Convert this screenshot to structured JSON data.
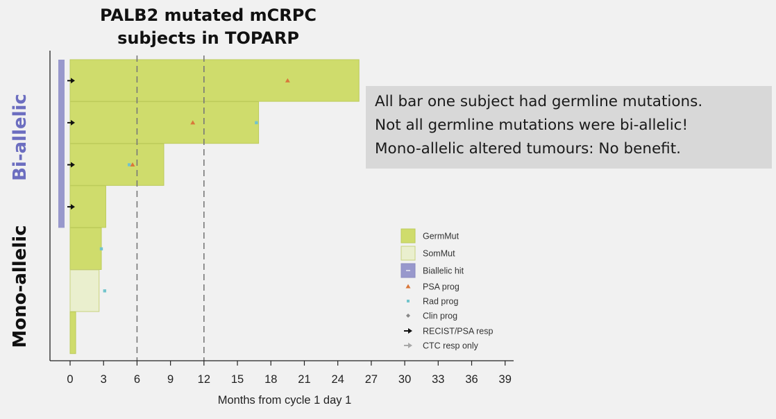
{
  "slide": {
    "title_line1": "PALB2 mutated mCRPC",
    "title_line2": "subjects in TOPARP",
    "group_labels": {
      "bi": "Bi-allelic",
      "mono": "Mono-allelic"
    },
    "note_lines": [
      "All bar one subject had germline mutations.",
      "Not all germline mutations were bi-allelic!",
      "Mono-allelic altered tumours: No benefit."
    ]
  },
  "colors": {
    "germ": "#cfdc6c",
    "som": "#eaefce",
    "biallelic": "#9898cc",
    "psa": "#d9773a",
    "rad": "#72c4cc",
    "clin": "#888888",
    "resp": "#111111",
    "ctc": "#a8a8a8"
  },
  "chart_data": {
    "type": "bar",
    "orientation": "horizontal",
    "xlabel": "Months from cycle 1 day 1",
    "xlim": [
      0,
      39
    ],
    "xticks": [
      0,
      3,
      6,
      9,
      12,
      15,
      18,
      21,
      24,
      27,
      30,
      33,
      36,
      39
    ],
    "reference_lines_x": [
      6,
      12
    ],
    "subjects": [
      {
        "duration": 25.9,
        "mutation": "GermMut",
        "biallelic": true,
        "events": [
          {
            "type": "RECIST/PSA resp",
            "x": 0
          },
          {
            "type": "PSA prog",
            "x": 19.5
          }
        ]
      },
      {
        "duration": 16.9,
        "mutation": "GermMut",
        "biallelic": true,
        "events": [
          {
            "type": "RECIST/PSA resp",
            "x": 0
          },
          {
            "type": "PSA prog",
            "x": 11
          },
          {
            "type": "Rad prog",
            "x": 16.7
          }
        ]
      },
      {
        "duration": 8.4,
        "mutation": "GermMut",
        "biallelic": true,
        "events": [
          {
            "type": "RECIST/PSA resp",
            "x": 0
          },
          {
            "type": "Rad prog",
            "x": 5.3
          },
          {
            "type": "PSA prog",
            "x": 5.6
          }
        ]
      },
      {
        "duration": 3.2,
        "mutation": "GermMut",
        "biallelic": true,
        "events": [
          {
            "type": "RECIST/PSA resp",
            "x": 0
          }
        ]
      },
      {
        "duration": 2.8,
        "mutation": "GermMut",
        "biallelic": false,
        "events": [
          {
            "type": "Rad prog",
            "x": 2.8
          }
        ]
      },
      {
        "duration": 2.6,
        "mutation": "SomMut",
        "biallelic": false,
        "events": [
          {
            "type": "Rad prog",
            "x": 3.1
          }
        ]
      },
      {
        "duration": 0.5,
        "mutation": "GermMut",
        "biallelic": false,
        "events": []
      }
    ],
    "legend": [
      {
        "label": "GermMut",
        "kind": "germ"
      },
      {
        "label": "SomMut",
        "kind": "som"
      },
      {
        "label": "Biallelic hit",
        "kind": "biallelic"
      },
      {
        "label": "PSA prog",
        "kind": "psa"
      },
      {
        "label": "Rad prog",
        "kind": "rad"
      },
      {
        "label": "Clin prog",
        "kind": "clin"
      },
      {
        "label": "RECIST/PSA resp",
        "kind": "resp"
      },
      {
        "label": "CTC resp only",
        "kind": "ctc"
      }
    ],
    "legend_position": "lower-right"
  }
}
